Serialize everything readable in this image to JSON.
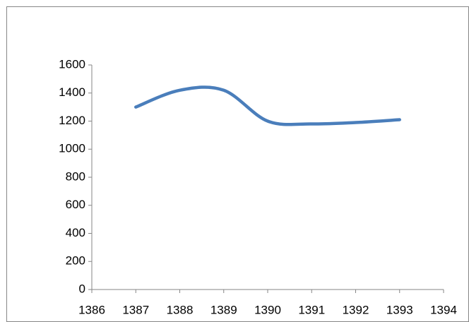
{
  "chart_data": {
    "type": "line",
    "x": [
      1387,
      1388,
      1389,
      1390,
      1391,
      1392,
      1393
    ],
    "series": [
      {
        "color": "#4a7ebb",
        "values": [
          1300,
          1420,
          1420,
          1200,
          1180,
          1190,
          1210
        ]
      }
    ],
    "xlim": [
      1386,
      1394
    ],
    "xticks": [
      1386,
      1387,
      1388,
      1389,
      1390,
      1391,
      1392,
      1393,
      1394
    ],
    "ylim": [
      0,
      1600
    ],
    "yticks": [
      0,
      200,
      400,
      600,
      800,
      1000,
      1200,
      1400,
      1600
    ],
    "grid": false,
    "smooth": true
  }
}
